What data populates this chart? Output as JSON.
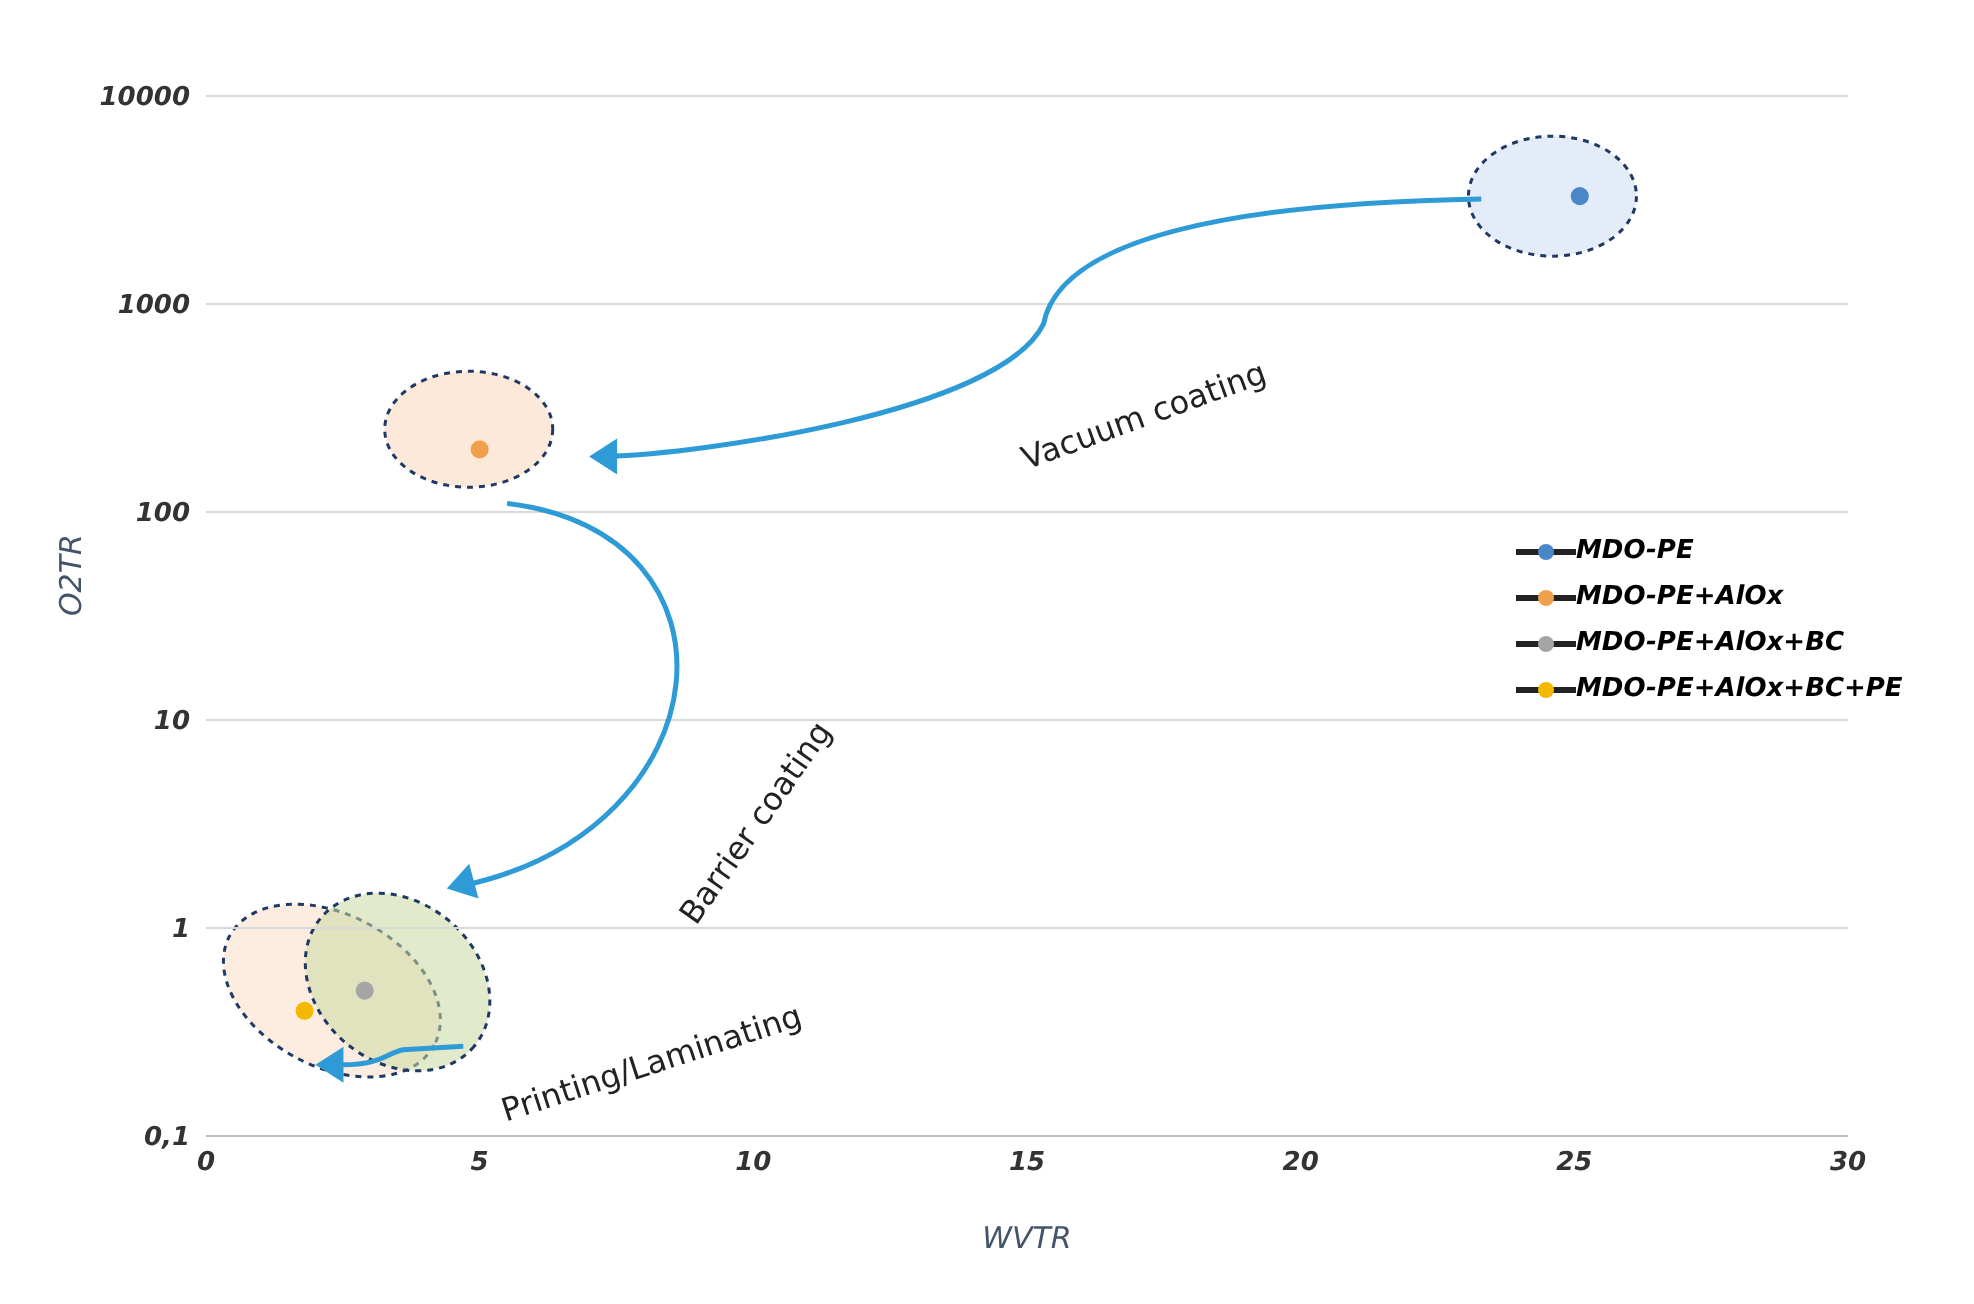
{
  "chart_data": {
    "type": "scatter",
    "xlabel": "WVTR",
    "ylabel": "O2TR",
    "xlim": [
      0,
      30
    ],
    "xticks": [
      0,
      5,
      10,
      15,
      20,
      25,
      30
    ],
    "ylim": [
      0.1,
      10000
    ],
    "yticks": [
      {
        "value": 0.1,
        "label": "0,1"
      },
      1,
      10,
      100,
      1000,
      10000
    ],
    "log": "y",
    "grid": "y",
    "legend": "right",
    "marker": "circle",
    "annotations": [
      "Vacuum coating",
      "Barrier coating",
      "Printing/Laminating"
    ],
    "series": [
      {
        "name": "MDO-PE",
        "color": "#4a86c8",
        "x": [
          25.1
        ],
        "values": [
          3300
        ]
      },
      {
        "name": "MDO-PE+AlOx",
        "color": "#f0a04b",
        "x": [
          5
        ],
        "values": [
          200
        ]
      },
      {
        "name": "MDO-PE+AlOx+BC",
        "color": "#a5a5a5",
        "x": [
          2.9
        ],
        "values": [
          0.5
        ]
      },
      {
        "name": "MDO-PE+AlOx+BC+PE",
        "color": "#f5b800",
        "x": [
          1.8
        ],
        "values": [
          0.4
        ]
      }
    ]
  }
}
